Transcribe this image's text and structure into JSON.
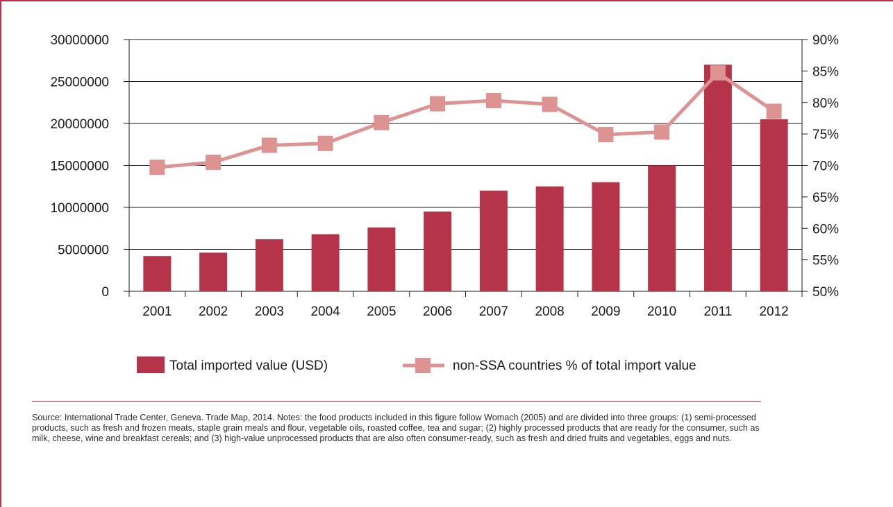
{
  "colors": {
    "frame": "#b5344a",
    "bar": "#b5344a",
    "line": "#dc9391",
    "grid": "#1a1a1a"
  },
  "legend": [
    {
      "label": "Total imported value (USD)",
      "marker": "bar"
    },
    {
      "label": "non-SSA countries % of total import value",
      "marker": "line-square"
    }
  ],
  "chart_data": {
    "type": "bar",
    "categories": [
      "2001",
      "2002",
      "2003",
      "2004",
      "2005",
      "2006",
      "2007",
      "2008",
      "2009",
      "2010",
      "2011",
      "2012"
    ],
    "series": [
      {
        "name": "Total imported value (USD)",
        "type": "bar",
        "axis": "left",
        "values": [
          4200000,
          4600000,
          6200000,
          6800000,
          7600000,
          9500000,
          12000000,
          12500000,
          13000000,
          15000000,
          27000000,
          20500000
        ]
      },
      {
        "name": "non-SSA countries % of total import value",
        "type": "line",
        "axis": "right",
        "values": [
          69.7,
          70.5,
          73.2,
          73.5,
          76.8,
          79.8,
          80.3,
          79.7,
          74.9,
          75.3,
          84.7,
          78.6
        ]
      }
    ],
    "y_left": {
      "ylim": [
        0,
        30000000
      ],
      "ticks": [
        "0",
        "5000000",
        "10000000",
        "15000000",
        "20000000",
        "25000000",
        "30000000"
      ]
    },
    "y_right": {
      "ylim": [
        50,
        90
      ],
      "ticks": [
        "50%",
        "55%",
        "60%",
        "65%",
        "70%",
        "75%",
        "80%",
        "85%",
        "90%"
      ]
    },
    "grid": true,
    "legend_position": "bottom"
  },
  "source_note": "Source: International Trade Center, Geneva. Trade Map, 2014. Notes: the food products included in this figure follow Womach (2005) and are divided into three groups: (1) semi-processed products, such as fresh and frozen meats, staple grain meals and flour, vegetable oils, roasted coffee, tea and sugar; (2) highly processed products that are ready for the consumer, such as milk, cheese, wine and breakfast cereals; and (3) high-value unprocessed products that are also often consumer-ready, such as fresh and dried fruits and vegetables, eggs and nuts."
}
